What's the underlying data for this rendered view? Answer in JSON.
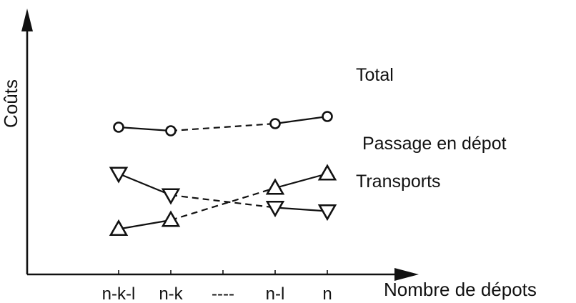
{
  "chart_data": {
    "type": "line",
    "title": "",
    "xlabel": "Nombre de dépots",
    "ylabel": "Coûts",
    "categories": [
      "n-k-l",
      "n-k",
      "----",
      "n-l",
      "n"
    ],
    "category_positions": [
      0,
      1,
      2,
      3,
      4
    ],
    "grid": false,
    "legend": "inline-right",
    "ylim": [
      0,
      10
    ],
    "y_ticks_labeled": false,
    "series": [
      {
        "name": "Total",
        "marker": "circle",
        "x": [
          0,
          1,
          3,
          4
        ],
        "values": [
          8.0,
          7.8,
          8.2,
          8.6
        ],
        "segment_styles": [
          "solid",
          "dashed",
          "solid"
        ]
      },
      {
        "name": "Passage en dépot",
        "marker": "triangle-up",
        "x": [
          0,
          1,
          3,
          4
        ],
        "values": [
          2.3,
          2.8,
          4.6,
          5.4
        ],
        "segment_styles": [
          "solid",
          "dashed",
          "solid"
        ]
      },
      {
        "name": "Transports",
        "marker": "triangle-down",
        "x": [
          0,
          1,
          3,
          4
        ],
        "values": [
          5.4,
          4.2,
          3.5,
          3.3
        ],
        "segment_styles": [
          "solid",
          "dashed",
          "solid"
        ]
      }
    ]
  }
}
